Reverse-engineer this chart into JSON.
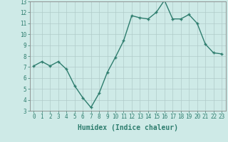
{
  "x": [
    0,
    1,
    2,
    3,
    4,
    5,
    6,
    7,
    8,
    9,
    10,
    11,
    12,
    13,
    14,
    15,
    16,
    17,
    18,
    19,
    20,
    21,
    22,
    23
  ],
  "y": [
    7.1,
    7.5,
    7.1,
    7.5,
    6.8,
    5.3,
    4.2,
    3.3,
    4.6,
    6.5,
    7.9,
    9.4,
    11.7,
    11.5,
    11.4,
    12.0,
    13.1,
    11.4,
    11.4,
    11.8,
    11.0,
    9.1,
    8.3,
    8.2
  ],
  "line_color": "#2e7d6e",
  "marker": "+",
  "markersize": 3.5,
  "linewidth": 1.0,
  "xlabel": "Humidex (Indice chaleur)",
  "xlabel_fontsize": 7,
  "xlabel_bold": true,
  "bg_color": "#ceeae7",
  "grid_color": "#b0cbc9",
  "xlim": [
    -0.5,
    23.5
  ],
  "ylim": [
    3,
    13
  ],
  "yticks": [
    3,
    4,
    5,
    6,
    7,
    8,
    9,
    10,
    11,
    12,
    13
  ],
  "xticks": [
    0,
    1,
    2,
    3,
    4,
    5,
    6,
    7,
    8,
    9,
    10,
    11,
    12,
    13,
    14,
    15,
    16,
    17,
    18,
    19,
    20,
    21,
    22,
    23
  ],
  "tick_fontsize": 5.5,
  "spine_color": "#888888",
  "tick_color": "#2e7d6e"
}
